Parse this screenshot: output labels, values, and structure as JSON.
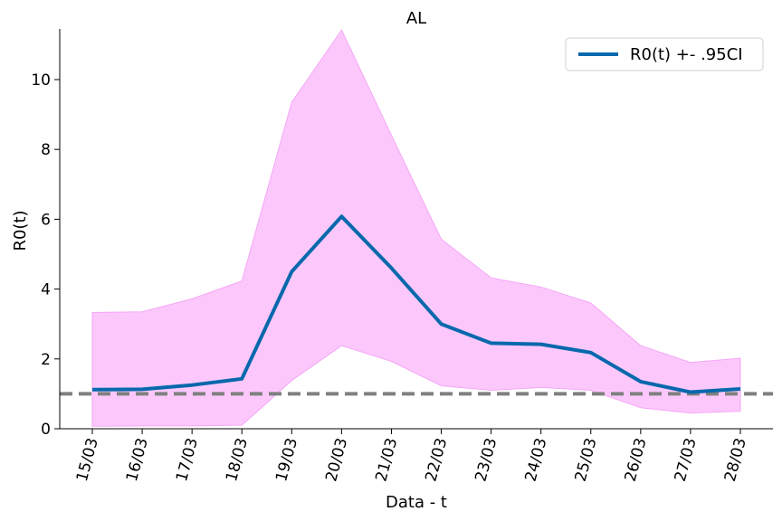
{
  "chart_data": {
    "type": "line",
    "title": "AL",
    "xlabel": "Data - t",
    "ylabel": "R0(t)",
    "categories": [
      "15/03",
      "16/03",
      "17/03",
      "18/03",
      "19/03",
      "20/03",
      "21/03",
      "22/03",
      "23/03",
      "24/03",
      "25/03",
      "26/03",
      "27/03",
      "28/03"
    ],
    "series": [
      {
        "name": "R0(t) +- .95CI",
        "values": [
          1.12,
          1.13,
          1.25,
          1.43,
          4.5,
          6.08,
          4.6,
          3.0,
          2.45,
          2.42,
          2.18,
          1.35,
          1.05,
          1.14
        ],
        "ci_upper": [
          3.33,
          3.35,
          3.72,
          4.23,
          9.35,
          11.42,
          8.4,
          5.43,
          4.32,
          4.06,
          3.6,
          2.38,
          1.9,
          2.02
        ],
        "ci_lower": [
          0.07,
          0.08,
          0.08,
          0.1,
          1.38,
          2.38,
          1.93,
          1.23,
          1.1,
          1.18,
          1.1,
          0.6,
          0.45,
          0.5
        ],
        "color": "#0868ac",
        "band_color": "#fcc8fc"
      }
    ],
    "reference_line": {
      "y": 1.0,
      "color": "#808080",
      "style": "dashed"
    },
    "yticks": [
      0,
      2,
      4,
      6,
      8,
      10
    ],
    "ylim": [
      0,
      11.45
    ],
    "legend": "top-right",
    "grid": false
  }
}
